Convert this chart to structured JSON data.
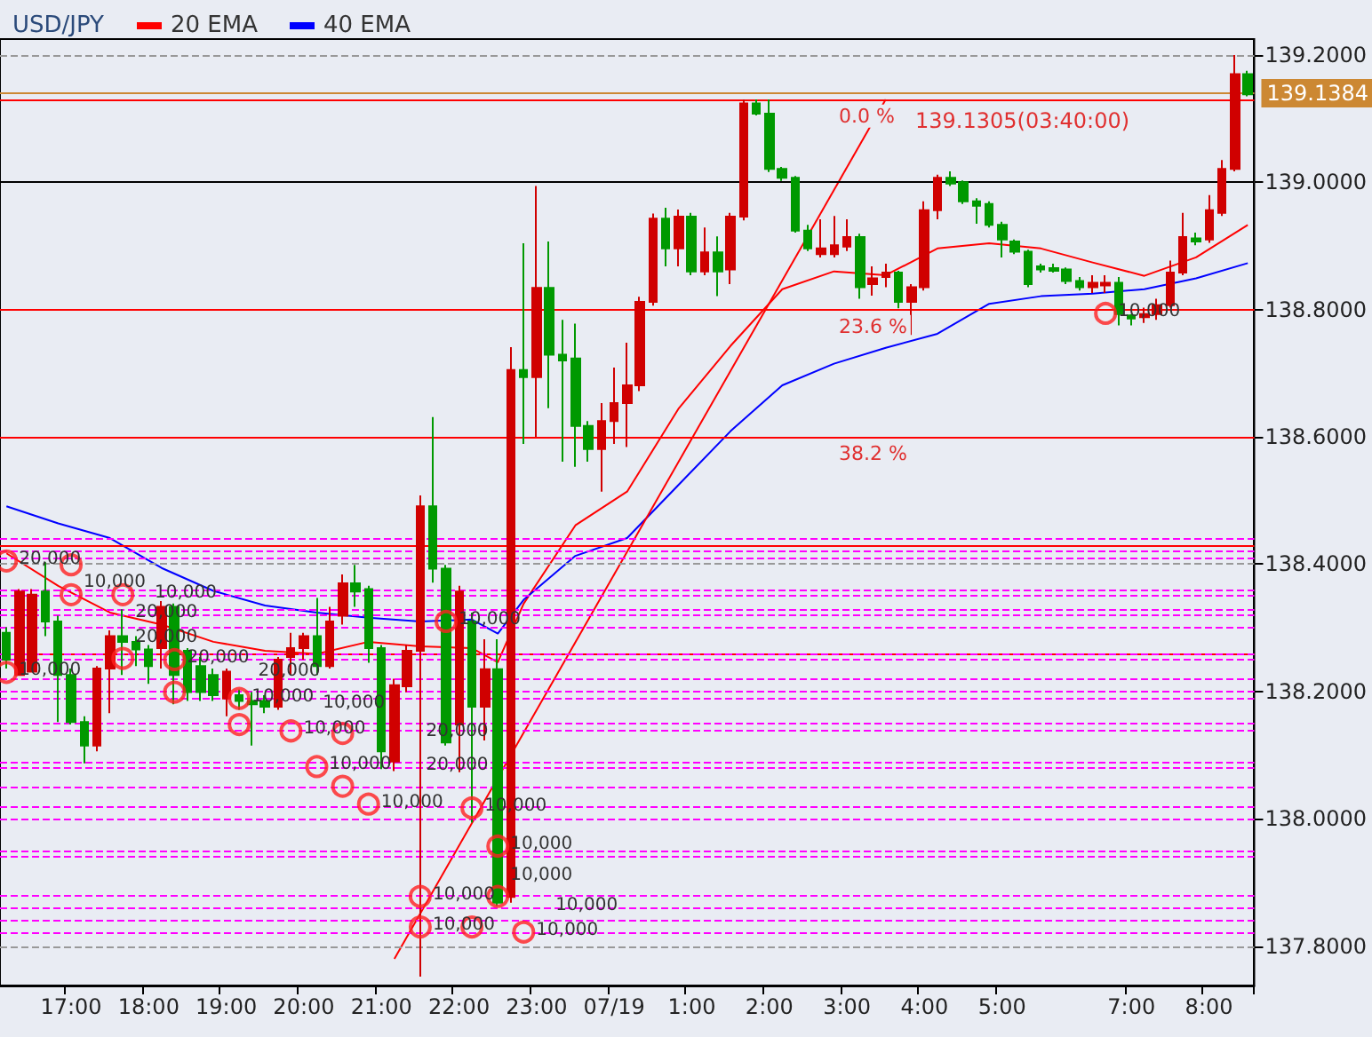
{
  "chart_data": {
    "type": "candlestick",
    "title": "USD/JPY",
    "categories": [
      null,
      null,
      null,
      null,
      null,
      "17:00",
      null,
      null,
      null,
      null,
      null,
      "18:00",
      null,
      null,
      null,
      null,
      null,
      "19:00",
      null,
      null,
      null,
      null,
      null,
      "20:00",
      null,
      null,
      null,
      null,
      null,
      "21:00",
      null,
      null,
      null,
      null,
      null,
      "22:00",
      null,
      null,
      null,
      null,
      null,
      "23:00",
      null,
      null,
      null,
      null,
      null,
      "07/19",
      null,
      null,
      null,
      null,
      null,
      "1:00",
      null,
      null,
      null,
      null,
      null,
      "2:00",
      null,
      null,
      null,
      null,
      null,
      "3:00",
      null,
      null,
      null,
      null,
      null,
      "4:00",
      null,
      null,
      null,
      null,
      null,
      "5:00",
      null,
      null,
      null,
      null,
      null,
      null,
      null,
      null,
      null,
      "7:00",
      null,
      null,
      null,
      null,
      null,
      "8:00",
      null,
      null,
      null
    ],
    "ylim": [
      137.738,
      139.225
    ],
    "yticks": [
      {
        "value": 137.8,
        "label": "137.8000"
      },
      {
        "value": 138.0,
        "label": "138.0000"
      },
      {
        "value": 138.2,
        "label": "138.2000"
      },
      {
        "value": 138.4,
        "label": "138.4000"
      },
      {
        "value": 138.6,
        "label": "138.6000"
      },
      {
        "value": 138.8,
        "label": "138.8000"
      },
      {
        "value": 139.0,
        "label": "139.0000"
      },
      {
        "value": 139.2,
        "label": "139.2000"
      }
    ],
    "grid": "y",
    "legend": "top left",
    "series": [
      {
        "type": "candlestick",
        "ohlc": [
          [
            138.292,
            138.301,
            138.236,
            138.25
          ],
          [
            138.226,
            138.361,
            138.226,
            138.357
          ],
          [
            138.231,
            138.361,
            138.231,
            138.352
          ],
          [
            138.357,
            138.403,
            138.287,
            138.31
          ],
          [
            138.31,
            138.319,
            138.152,
            138.226
          ],
          [
            138.226,
            138.236,
            138.148,
            138.152
          ],
          [
            138.152,
            138.161,
            138.087,
            138.115
          ],
          [
            138.115,
            138.24,
            138.106,
            138.236
          ],
          [
            138.236,
            138.296,
            138.166,
            138.287
          ],
          [
            138.287,
            138.329,
            138.226,
            138.278
          ],
          [
            138.278,
            138.287,
            138.24,
            138.266
          ],
          [
            138.266,
            138.273,
            138.212,
            138.24
          ],
          [
            138.268,
            138.342,
            138.236,
            138.333
          ],
          [
            138.333,
            138.338,
            138.18,
            138.226
          ],
          [
            138.264,
            138.268,
            138.185,
            138.199
          ],
          [
            138.24,
            138.254,
            138.185,
            138.199
          ],
          [
            138.226,
            138.236,
            138.185,
            138.194
          ],
          [
            138.189,
            138.236,
            138.161,
            138.231
          ],
          [
            138.194,
            138.203,
            138.171,
            138.185
          ],
          [
            138.185,
            138.199,
            138.115,
            138.18
          ],
          [
            138.185,
            138.194,
            138.166,
            138.176
          ],
          [
            138.176,
            138.254,
            138.171,
            138.25
          ],
          [
            138.254,
            138.292,
            138.226,
            138.268
          ],
          [
            138.268,
            138.292,
            138.25,
            138.287
          ],
          [
            138.287,
            138.347,
            138.226,
            138.24
          ],
          [
            138.24,
            138.333,
            138.236,
            138.31
          ],
          [
            138.319,
            138.384,
            138.305,
            138.37
          ],
          [
            138.37,
            138.399,
            138.333,
            138.357
          ],
          [
            138.361,
            138.366,
            138.245,
            138.268
          ],
          [
            138.268,
            138.273,
            138.078,
            138.106
          ],
          [
            138.09,
            138.22,
            138.075,
            138.21
          ],
          [
            138.208,
            138.273,
            138.199,
            138.264
          ],
          [
            138.264,
            138.508,
            137.752,
            138.491
          ],
          [
            138.491,
            138.631,
            138.371,
            138.393
          ],
          [
            138.393,
            138.399,
            138.115,
            138.12
          ],
          [
            138.148,
            138.366,
            138.073,
            138.357
          ],
          [
            138.31,
            138.324,
            137.994,
            138.176
          ],
          [
            138.176,
            138.282,
            138.123,
            138.235
          ],
          [
            138.235,
            138.282,
            137.863,
            137.868
          ],
          [
            137.877,
            138.741,
            137.868,
            138.705
          ],
          [
            138.705,
            138.904,
            138.589,
            138.694
          ],
          [
            138.694,
            138.994,
            138.6,
            138.834
          ],
          [
            138.834,
            138.907,
            138.645,
            138.729
          ],
          [
            138.729,
            138.784,
            138.561,
            138.72
          ],
          [
            138.723,
            138.778,
            138.553,
            138.617
          ],
          [
            138.617,
            138.625,
            138.561,
            138.581
          ],
          [
            138.581,
            138.653,
            138.514,
            138.625
          ],
          [
            138.625,
            138.709,
            138.589,
            138.653
          ],
          [
            138.653,
            138.748,
            138.584,
            138.681
          ],
          [
            138.681,
            138.82,
            138.672,
            138.812
          ],
          [
            138.812,
            138.951,
            138.806,
            138.943
          ],
          [
            138.943,
            138.96,
            138.868,
            138.896
          ],
          [
            138.896,
            138.957,
            138.868,
            138.946
          ],
          [
            138.946,
            138.952,
            138.854,
            138.86
          ],
          [
            138.86,
            138.929,
            138.854,
            138.89
          ],
          [
            138.89,
            138.915,
            138.821,
            138.86
          ],
          [
            138.863,
            138.952,
            138.84,
            138.946
          ],
          [
            138.946,
            139.13,
            138.94,
            139.124
          ],
          [
            139.124,
            139.13,
            139.105,
            139.108
          ],
          [
            139.108,
            139.13,
            139.016,
            139.021
          ],
          [
            139.021,
            139.024,
            139.002,
            139.007
          ],
          [
            139.007,
            139.01,
            138.921,
            138.924
          ],
          [
            138.924,
            138.933,
            138.892,
            138.896
          ],
          [
            138.887,
            138.942,
            138.882,
            138.896
          ],
          [
            138.887,
            138.947,
            138.882,
            138.901
          ],
          [
            138.899,
            138.942,
            138.892,
            138.914
          ],
          [
            138.914,
            138.919,
            138.817,
            138.835
          ],
          [
            138.84,
            138.868,
            138.822,
            138.849
          ],
          [
            138.851,
            138.872,
            138.835,
            138.858
          ],
          [
            138.858,
            138.861,
            138.802,
            138.812
          ],
          [
            138.812,
            138.84,
            138.76,
            138.835
          ],
          [
            138.835,
            138.97,
            138.83,
            138.956
          ],
          [
            138.956,
            139.012,
            138.942,
            139.007
          ],
          [
            139.007,
            139.017,
            138.994,
            138.998
          ],
          [
            139.0,
            139.003,
            138.966,
            138.97
          ],
          [
            138.97,
            138.975,
            138.935,
            138.963
          ],
          [
            138.966,
            138.97,
            138.929,
            138.933
          ],
          [
            138.933,
            138.938,
            138.882,
            138.91
          ],
          [
            138.907,
            138.91,
            138.887,
            138.891
          ],
          [
            138.891,
            138.894,
            138.835,
            138.84
          ],
          [
            138.868,
            138.872,
            138.858,
            138.863
          ],
          [
            138.865,
            138.872,
            138.858,
            138.861
          ],
          [
            138.863,
            138.866,
            138.84,
            138.845
          ],
          [
            138.845,
            138.851,
            138.83,
            138.835
          ],
          [
            138.835,
            138.854,
            138.826,
            138.842
          ],
          [
            138.838,
            138.854,
            138.826,
            138.842
          ],
          [
            138.842,
            138.851,
            138.775,
            138.793
          ],
          [
            138.791,
            138.793,
            138.775,
            138.786
          ],
          [
            138.788,
            138.803,
            138.779,
            138.793
          ],
          [
            138.793,
            138.817,
            138.784,
            138.807
          ],
          [
            138.807,
            138.877,
            138.803,
            138.858
          ],
          [
            138.858,
            138.952,
            138.854,
            138.914
          ],
          [
            138.912,
            138.921,
            138.901,
            138.907
          ],
          [
            138.91,
            138.98,
            138.905,
            138.956
          ],
          [
            138.952,
            139.035,
            138.947,
            139.021
          ],
          [
            139.021,
            139.2,
            139.017,
            139.17
          ],
          [
            139.17,
            139.175,
            139.135,
            139.138
          ]
        ],
        "colors": [
          "#009900",
          "#d00000",
          "#d00000",
          "#009900",
          "#009900",
          "#009900",
          "#009900",
          "#d00000",
          "#d00000",
          "#009900",
          "#009900",
          "#009900",
          "#d00000",
          "#009900",
          "#009900",
          "#009900",
          "#009900",
          "#d00000",
          "#009900",
          "#009900",
          "#009900",
          "#d00000",
          "#d00000",
          "#d00000",
          "#009900",
          "#d00000",
          "#d00000",
          "#009900",
          "#009900",
          "#009900",
          "#d00000",
          "#d00000",
          "#d00000",
          "#009900",
          "#009900",
          "#d00000",
          "#009900",
          "#d00000",
          "#009900",
          "#d00000",
          "#009900",
          "#d00000",
          "#009900",
          "#009900",
          "#009900",
          "#009900",
          "#d00000",
          "#d00000",
          "#d00000",
          "#d00000",
          "#d00000",
          "#009900",
          "#d00000",
          "#009900",
          "#d00000",
          "#009900",
          "#d00000",
          "#d00000",
          "#009900",
          "#009900",
          "#009900",
          "#009900",
          "#009900",
          "#d00000",
          "#d00000",
          "#d00000",
          "#009900",
          "#d00000",
          "#d00000",
          "#009900",
          "#d00000",
          "#d00000",
          "#d00000",
          "#009900",
          "#009900",
          "#009900",
          "#009900",
          "#009900",
          "#009900",
          "#009900",
          "#009900",
          "#009900",
          "#009900",
          "#009900",
          "#d00000",
          "#d00000",
          "#009900",
          "#009900",
          "#d00000",
          "#d00000",
          "#d00000",
          "#d00000",
          "#009900",
          "#d00000",
          "#d00000",
          "#d00000",
          "#009900"
        ]
      },
      {
        "type": "line",
        "name": "20 EMA",
        "color": "#ff0000",
        "values": [
          138.417,
          null,
          null,
          null,
          138.366,
          null,
          null,
          null,
          138.324,
          null,
          null,
          null,
          138.305,
          null,
          null,
          null,
          138.278,
          null,
          null,
          null,
          138.264,
          null,
          null,
          null,
          138.259,
          null,
          null,
          null,
          138.278,
          null,
          null,
          null,
          138.271,
          null,
          null,
          null,
          138.268,
          null,
          138.246,
          null,
          138.338,
          null,
          null,
          null,
          138.461,
          null,
          null,
          null,
          138.514,
          null,
          null,
          null,
          138.645,
          null,
          null,
          null,
          138.743,
          null,
          null,
          null,
          138.832,
          null,
          null,
          null,
          138.86,
          null,
          null,
          null,
          138.854,
          null,
          null,
          null,
          138.896,
          null,
          null,
          null,
          138.904,
          null,
          null,
          null,
          138.896,
          null,
          null,
          null,
          138.874,
          null,
          null,
          null,
          138.853,
          null,
          null,
          null,
          138.882,
          null,
          null,
          null,
          138.933
        ]
      },
      {
        "type": "line",
        "name": "40 EMA",
        "color": "#0000ff",
        "values": [
          138.491,
          null,
          null,
          null,
          138.464,
          null,
          null,
          null,
          138.441,
          null,
          null,
          null,
          138.394,
          null,
          null,
          null,
          138.358,
          null,
          null,
          null,
          138.335,
          null,
          null,
          null,
          138.324,
          null,
          null,
          null,
          138.316,
          null,
          null,
          null,
          138.31,
          null,
          null,
          null,
          138.313,
          null,
          138.291,
          null,
          138.344,
          null,
          null,
          null,
          138.413,
          null,
          null,
          null,
          138.441,
          null,
          null,
          null,
          138.525,
          null,
          null,
          null,
          138.609,
          null,
          null,
          null,
          138.681,
          null,
          null,
          null,
          138.715,
          null,
          null,
          null,
          138.74,
          null,
          null,
          null,
          138.762,
          null,
          null,
          null,
          138.809,
          null,
          null,
          null,
          138.821,
          null,
          null,
          null,
          138.825,
          null,
          null,
          null,
          138.832,
          null,
          null,
          null,
          138.849,
          null,
          null,
          null,
          138.873
        ]
      },
      {
        "type": "line",
        "color": "#ff0000",
        "values": [
          null,
          null,
          null,
          null,
          null,
          null,
          null,
          null,
          null,
          null,
          null,
          null,
          null,
          null,
          null,
          null,
          null,
          null,
          null,
          null,
          null,
          null,
          null,
          null,
          null,
          null,
          null,
          null,
          null,
          null,
          137.78,
          null,
          null,
          null,
          null,
          null,
          null,
          null,
          null,
          null,
          null,
          null,
          null,
          null,
          null,
          null,
          null,
          null,
          null,
          null,
          null,
          null,
          null,
          null,
          null,
          null,
          null,
          null,
          null,
          null,
          null,
          null,
          null,
          null,
          null,
          null,
          null,
          null,
          139.13,
          null,
          null,
          null,
          null,
          null,
          null,
          null,
          null,
          null,
          null,
          null,
          null,
          null,
          null,
          null,
          null,
          null,
          null,
          null,
          null,
          null,
          null,
          null,
          null,
          null,
          null,
          null,
          null
        ]
      },
      {
        "type": "scatter",
        "color": "#ff2020",
        "marker": "circle",
        "values": [
          138.405,
          null,
          null,
          null,
          null,
          138.399,
          null,
          null,
          null,
          138.352,
          null,
          null,
          null,
          138.25,
          null,
          null,
          null,
          null,
          138.189,
          null,
          null,
          null,
          138.138,
          null,
          138.082,
          null,
          138.134,
          null,
          138.023,
          null,
          null,
          null,
          137.878,
          null,
          138.31,
          null,
          138.017,
          null,
          137.957,
          null,
          137.822,
          null,
          null,
          null,
          null,
          null,
          null,
          null,
          null,
          null,
          null,
          null,
          null,
          null,
          null,
          null,
          null,
          null,
          null,
          null,
          null,
          null,
          null,
          null,
          null,
          null,
          null,
          null,
          null,
          null,
          null,
          null,
          null,
          null,
          null,
          null,
          null,
          null,
          null,
          null,
          null,
          null,
          null,
          null,
          null,
          138.794,
          null,
          null,
          null,
          null,
          null,
          null,
          null,
          null,
          null,
          null,
          null
        ]
      },
      {
        "type": "scatter",
        "color": "#ff2020",
        "marker": "circle",
        "values": [
          138.23,
          null,
          null,
          null,
          null,
          138.352,
          null,
          null,
          null,
          138.252,
          null,
          null,
          null,
          138.199,
          null,
          null,
          null,
          null,
          138.148,
          null,
          null,
          null,
          null,
          null,
          null,
          null,
          138.051,
          null,
          null,
          null,
          null,
          null,
          137.83,
          null,
          null,
          null,
          137.83,
          null,
          137.878,
          null,
          null,
          null,
          null,
          null,
          null,
          null,
          null,
          null,
          null,
          null,
          null,
          null,
          null,
          null,
          null,
          null,
          null,
          null,
          null,
          null,
          null,
          null,
          null,
          null,
          null,
          null,
          null,
          null,
          null,
          null,
          null,
          null,
          null,
          null,
          null,
          null,
          null,
          null,
          null,
          null,
          null,
          null,
          null,
          null,
          null,
          null,
          null,
          null,
          null,
          null,
          null,
          null,
          null,
          null,
          null,
          null,
          null
        ]
      }
    ],
    "ref_lines": [
      {
        "axis": "y",
        "value": 139.1305,
        "label": null,
        "color": "#ff0000"
      },
      {
        "axis": "y",
        "value": 138.8,
        "label": null,
        "color": "#ff0000"
      },
      {
        "axis": "y",
        "value": 138.6,
        "label": null,
        "color": "#ff0000"
      },
      {
        "axis": "y",
        "value": 138.434,
        "label": null,
        "color": "#ff0000"
      },
      {
        "axis": "y",
        "value": 138.264,
        "label": null,
        "color": "#ff0000"
      },
      {
        "axis": "y",
        "value": 139.0,
        "label": null,
        "color": "#000000"
      },
      {
        "axis": "y",
        "value": 139.1384,
        "label": "139.1384",
        "color": "#cc8833"
      },
      {
        "axis": "y",
        "value": 138.438,
        "label": null,
        "color": "#ff00ff",
        "line_style": "dashed"
      },
      {
        "axis": "y",
        "value": 138.416,
        "label": null,
        "color": "#ff00ff",
        "line_style": "dashed"
      },
      {
        "axis": "y",
        "value": 138.408,
        "label": null,
        "color": "#ff00ff",
        "line_style": "dashed"
      },
      {
        "axis": "y",
        "value": 138.36,
        "label": null,
        "color": "#ff00ff",
        "line_style": "dashed"
      },
      {
        "axis": "y",
        "value": 138.346,
        "label": null,
        "color": "#ff00ff",
        "line_style": "dashed"
      },
      {
        "axis": "y",
        "value": 138.332,
        "label": null,
        "color": "#ff00ff",
        "line_style": "dashed"
      },
      {
        "axis": "y",
        "value": 138.318,
        "label": null,
        "color": "#ff00ff",
        "line_style": "dashed"
      },
      {
        "axis": "y",
        "value": 138.296,
        "label": null,
        "color": "#ff00ff",
        "line_style": "dashed"
      },
      {
        "axis": "y",
        "value": 138.26,
        "label": null,
        "color": "#ff00ff",
        "line_style": "dashed"
      },
      {
        "axis": "y",
        "value": 138.249,
        "label": null,
        "color": "#ff00ff",
        "line_style": "dashed"
      },
      {
        "axis": "y",
        "value": 138.224,
        "label": null,
        "color": "#ff00ff",
        "line_style": "dashed"
      },
      {
        "axis": "y",
        "value": 138.199,
        "label": null,
        "color": "#ff00ff",
        "line_style": "dashed"
      },
      {
        "axis": "y",
        "value": 138.19,
        "label": null,
        "color": "#ff00ff",
        "line_style": "dashed"
      },
      {
        "axis": "y",
        "value": 138.151,
        "label": null,
        "color": "#ff00ff",
        "line_style": "dashed"
      },
      {
        "axis": "y",
        "value": 138.143,
        "label": null,
        "color": "#ff00ff",
        "line_style": "dashed"
      },
      {
        "axis": "y",
        "value": 138.095,
        "label": null,
        "color": "#ff00ff",
        "line_style": "dashed"
      },
      {
        "axis": "y",
        "value": 138.079,
        "label": null,
        "color": "#ff00ff",
        "line_style": "dashed"
      },
      {
        "axis": "y",
        "value": 138.048,
        "label": null,
        "color": "#ff00ff",
        "line_style": "dashed"
      },
      {
        "axis": "y",
        "value": 138.02,
        "label": null,
        "color": "#ff00ff",
        "line_style": "dashed"
      },
      {
        "axis": "y",
        "value": 137.998,
        "label": null,
        "color": "#ff00ff",
        "line_style": "dashed"
      },
      {
        "axis": "y",
        "value": 137.953,
        "label": null,
        "color": "#ff00ff",
        "line_style": "dashed"
      },
      {
        "axis": "y",
        "value": 137.936,
        "label": null,
        "color": "#ff00ff",
        "line_style": "dashed"
      },
      {
        "axis": "y",
        "value": 137.878,
        "label": null,
        "color": "#ff00ff",
        "line_style": "dashed"
      },
      {
        "axis": "y",
        "value": 137.864,
        "label": null,
        "color": "#ff00ff",
        "line_style": "dashed"
      },
      {
        "axis": "y",
        "value": 137.836,
        "label": null,
        "color": "#ff00ff",
        "line_style": "dashed"
      },
      {
        "axis": "y",
        "value": 137.817,
        "label": null,
        "color": "#ff00ff",
        "line_style": "dashed"
      }
    ],
    "annotations": [
      "139.1305(03:40:00)",
      {
        "text": "0.0 %",
        "y": 139.1305
      },
      {
        "text": "23.6 %",
        "y": 138.8
      },
      {
        "text": "38.2 %",
        "y": 138.6
      },
      {
        "text": "20,000",
        "y": 138.405
      },
      {
        "text": "10,000",
        "y": 138.399
      },
      {
        "text": "20,000",
        "y": 138.352
      },
      {
        "text": "20,000",
        "y": 138.25
      },
      {
        "text": "10,000",
        "y": 138.189
      },
      {
        "text": "10,000",
        "y": 138.138
      },
      {
        "text": "10,000",
        "y": 138.082
      },
      {
        "text": "20,000",
        "y": 138.134
      },
      {
        "text": "10,000",
        "y": 138.023
      },
      {
        "text": "10,000",
        "y": 137.878
      },
      {
        "text": "10,000",
        "y": 138.31
      },
      {
        "text": "10,000",
        "y": 138.017
      },
      {
        "text": "10,000",
        "y": 137.957
      },
      {
        "text": "10,000",
        "y": 137.822
      },
      {
        "text": "10,000",
        "y": 138.794
      },
      {
        "text": "10,000",
        "y": 138.23
      },
      {
        "text": "10,000",
        "y": 138.352
      },
      {
        "text": "20,000",
        "y": 138.252
      },
      {
        "text": "20,000",
        "y": 138.199
      },
      {
        "text": "10,000",
        "y": 138.148
      },
      {
        "text": "20,000",
        "y": 138.051
      },
      {
        "text": "10,000",
        "y": 137.83
      },
      {
        "text": "10,000",
        "y": 137.83
      },
      {
        "text": "10,000",
        "y": 137.878
      }
    ]
  }
}
